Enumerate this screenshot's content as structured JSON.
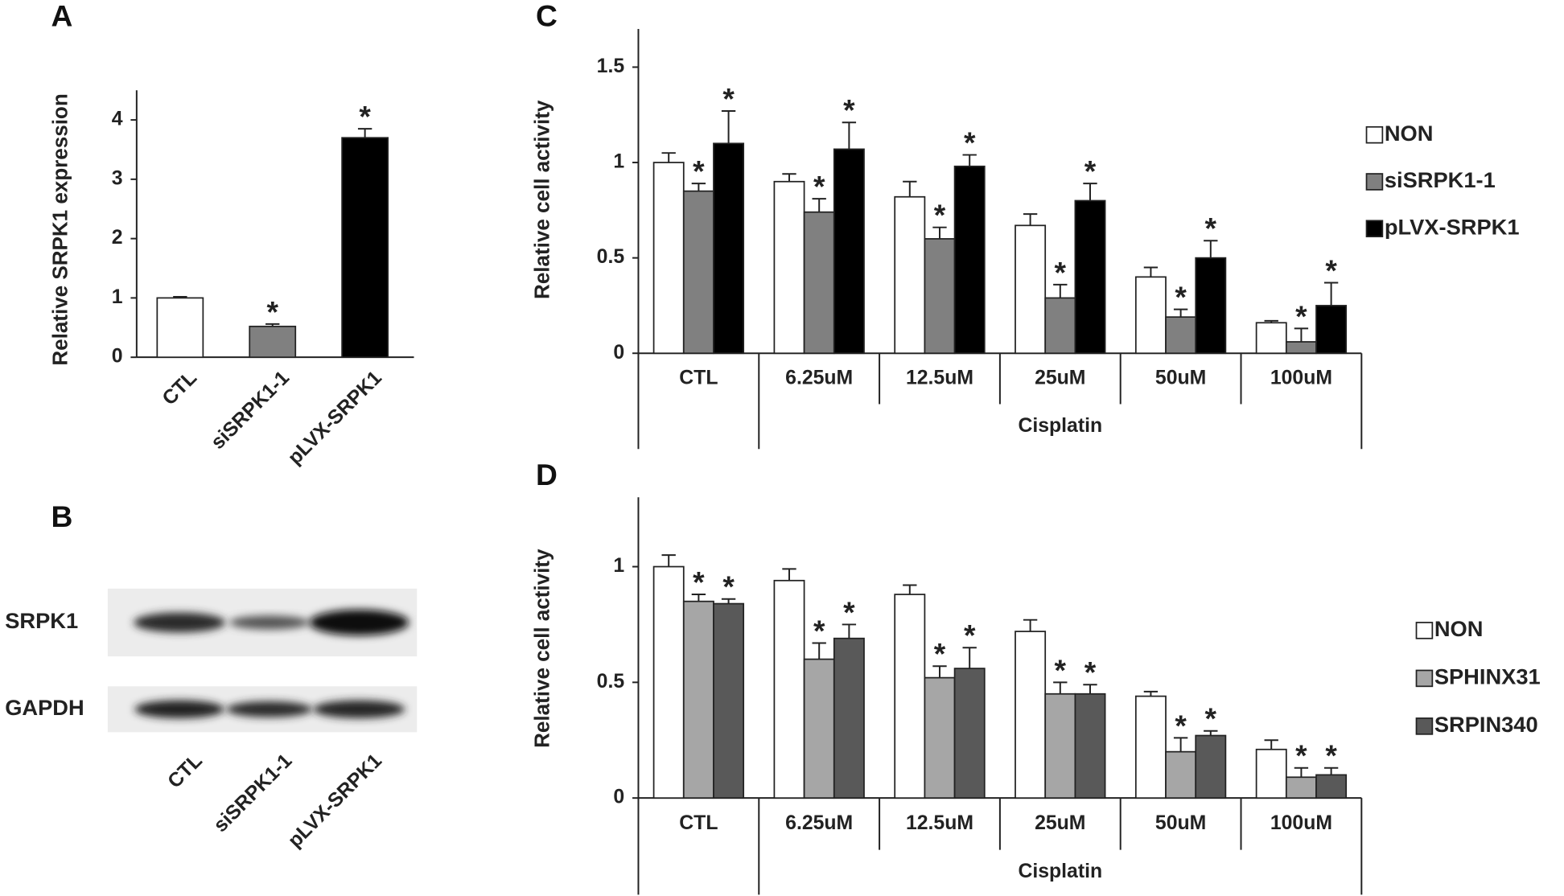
{
  "chart_data": [
    {
      "type": "bar",
      "panel": "A",
      "ylabel": "Relative SRPK1 expression",
      "categories": [
        "CTL",
        "siSRPK1-1",
        "pLVX-SRPK1"
      ],
      "values": [
        1,
        0.52,
        3.7
      ],
      "errors": [
        0.02,
        0.04,
        0.15
      ],
      "labels": [
        null,
        "*",
        "*"
      ],
      "colors": [
        "#ffffff",
        "#808080",
        "#000000"
      ],
      "ylim": [
        0,
        4.5
      ],
      "yticks": [
        0,
        1,
        2,
        3,
        4
      ]
    },
    {
      "type": "blot",
      "panel": "B",
      "rows": [
        "SRPK1",
        "GAPDH"
      ],
      "lanes": [
        "CTL",
        "siSRPK1-1",
        "pLVX-SRPK1"
      ]
    },
    {
      "type": "grouped_bar",
      "panel": "C",
      "ylabel": "Relative cell activity",
      "group_label": "Cisplatin",
      "categories": [
        "CTL",
        "6.25uM",
        "12.5uM",
        "25uM",
        "50uM",
        "100uM"
      ],
      "series": [
        {
          "name": "NON",
          "color": "#ffffff",
          "values": [
            1,
            0.9,
            0.82,
            0.67,
            0.4,
            0.16
          ],
          "errors": [
            0.05,
            0.04,
            0.08,
            0.06,
            0.05,
            0.01
          ]
        },
        {
          "name": "siSRPK1-1",
          "color": "#808080",
          "values": [
            0.85,
            0.74,
            0.6,
            0.29,
            0.19,
            0.06
          ],
          "errors": [
            0.04,
            0.07,
            0.06,
            0.07,
            0.04,
            0.07
          ],
          "labels": [
            "*",
            "*",
            "*",
            "*",
            "*",
            "*"
          ]
        },
        {
          "name": "pLVX-SRPK1",
          "color": "#000000",
          "values": [
            1.1,
            1.07,
            0.98,
            0.8,
            0.5,
            0.25
          ],
          "errors": [
            0.17,
            0.14,
            0.06,
            0.09,
            0.09,
            0.12
          ],
          "labels": [
            "*",
            "*",
            "*",
            "*",
            "*",
            "*"
          ]
        }
      ],
      "ylim": [
        0,
        1.7
      ],
      "yticks": [
        0,
        0.5,
        1,
        1.5
      ]
    },
    {
      "type": "grouped_bar",
      "panel": "D",
      "ylabel": "Relative cell activity",
      "group_label": "Cisplatin",
      "categories": [
        "CTL",
        "6.25uM",
        "12.5uM",
        "25uM",
        "50uM",
        "100uM"
      ],
      "series": [
        {
          "name": "NON",
          "color": "#ffffff",
          "values": [
            1,
            0.94,
            0.88,
            0.72,
            0.44,
            0.21
          ],
          "errors": [
            0.05,
            0.05,
            0.04,
            0.05,
            0.02,
            0.04
          ]
        },
        {
          "name": "SPHINX31",
          "color": "#a6a6a6",
          "values": [
            0.85,
            0.6,
            0.52,
            0.45,
            0.2,
            0.09
          ],
          "errors": [
            0.03,
            0.07,
            0.05,
            0.05,
            0.06,
            0.04
          ],
          "labels": [
            "*",
            "*",
            "*",
            "*",
            "*",
            "*"
          ]
        },
        {
          "name": "SRPIN340",
          "color": "#595959",
          "values": [
            0.84,
            0.69,
            0.56,
            0.45,
            0.27,
            0.1
          ],
          "errors": [
            0.02,
            0.06,
            0.09,
            0.04,
            0.02,
            0.03
          ],
          "labels": [
            "*",
            "*",
            "*",
            "*",
            "*",
            "*"
          ]
        }
      ],
      "ylim": [
        0,
        1.3
      ],
      "yticks": [
        0,
        0.5,
        1
      ]
    }
  ]
}
